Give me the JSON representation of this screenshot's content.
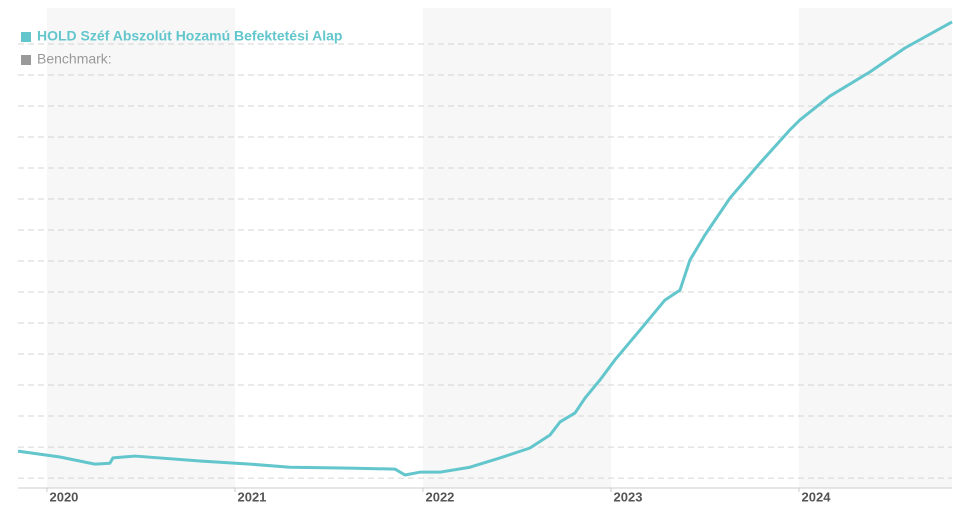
{
  "chart_data": {
    "type": "line",
    "series": [
      {
        "name": "HOLD Széf Abszolút Hozamú Befektetési Alap",
        "color": "#62c6cc",
        "values": [
          1.87,
          1.68,
          1.45,
          1.48,
          1.65,
          1.71,
          1.55,
          1.45,
          1.35,
          1.32,
          1.29,
          1.1,
          1.19,
          1.19,
          1.35,
          1.65,
          1.97,
          2.39,
          2.81,
          3.1,
          3.58,
          4.16,
          4.81,
          5.77,
          6.74,
          7.06,
          8.03,
          8.84,
          10.03,
          11.16,
          12.23,
          12.55,
          13.32,
          14.1,
          14.87,
          15.71
        ]
      }
    ],
    "benchmark": {
      "name": "Benchmark:",
      "color": "#999999"
    },
    "x": [
      2019.846,
      2020.069,
      2020.255,
      2020.335,
      2020.351,
      2020.468,
      2020.814,
      2021.08,
      2021.293,
      2021.612,
      2021.851,
      2021.904,
      2021.984,
      2022.09,
      2022.25,
      2022.41,
      2022.569,
      2022.676,
      2022.729,
      2022.809,
      2022.862,
      2022.941,
      2023.021,
      2023.154,
      2023.287,
      2023.367,
      2023.42,
      2023.5,
      2023.633,
      2023.793,
      2023.952,
      2024.005,
      2024.165,
      2024.378,
      2024.564,
      2024.814
    ],
    "xlim": [
      2019.846,
      2024.814
    ],
    "xticks": [
      2020,
      2021,
      2022,
      2023,
      2024
    ],
    "ylim": [
      0.68,
      16.16
    ],
    "yticks": [
      1,
      2,
      3,
      4,
      5,
      6,
      7,
      8,
      9,
      10,
      11,
      12,
      13,
      14,
      15
    ],
    "grid": true
  }
}
